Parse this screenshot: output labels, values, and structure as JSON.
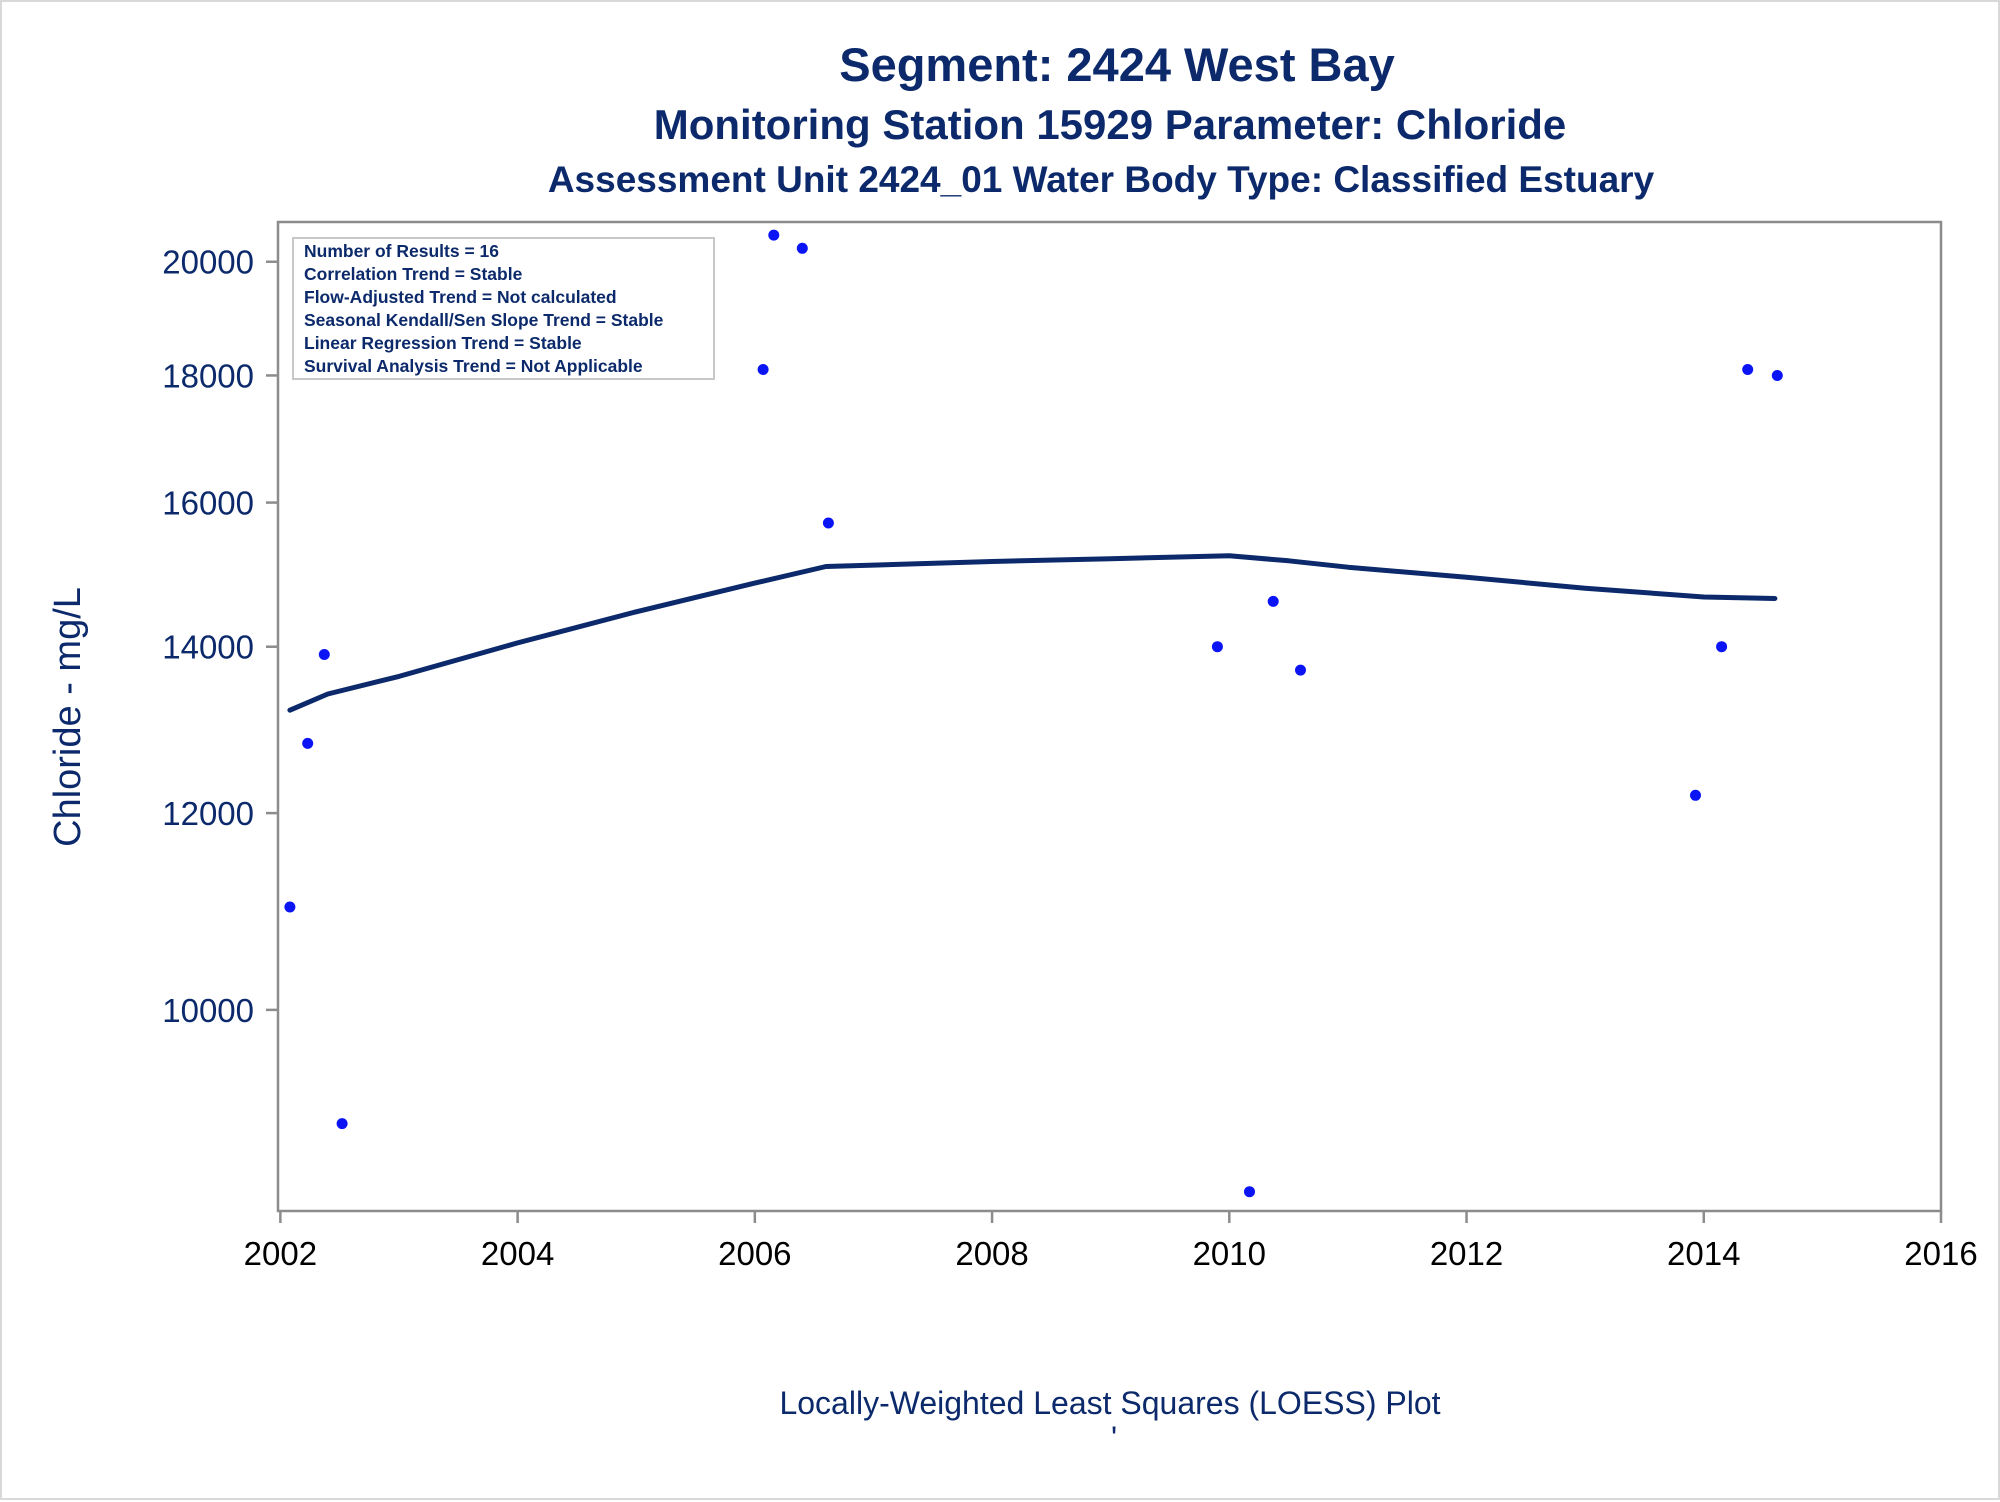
{
  "titles": [
    "Segment: 2424  West Bay",
    "Monitoring Station 15929 Parameter: Chloride",
    "Assessment Unit 2424_01   Water Body Type: Classified Estuary"
  ],
  "stats_box": [
    "Number of Results = 16",
    "Correlation Trend = Stable",
    "Flow-Adjusted Trend = Not calculated",
    "Seasonal Kendall/Sen Slope Trend = Stable",
    "Linear Regression Trend = Stable",
    "Survival Analysis Trend = Not Applicable"
  ],
  "footnote_mark": "'",
  "chart_data": {
    "type": "scatter",
    "xlabel": "Locally-Weighted Least Squares (LOESS) Plot",
    "ylabel": "Chloride - mg/L",
    "y_scale": "log",
    "xlim": [
      2001.98,
      2016.0
    ],
    "ylim": [
      8300,
      20750
    ],
    "x_ticks": [
      2002,
      2004,
      2006,
      2008,
      2010,
      2012,
      2014,
      2016
    ],
    "y_ticks": [
      10000,
      12000,
      14000,
      16000,
      18000,
      20000
    ],
    "grid": false,
    "colors": {
      "points": "#0a14f5",
      "line": "#0c2a6b",
      "text": "#0c2a6b"
    },
    "points": [
      {
        "x": 2002.08,
        "y": 11000
      },
      {
        "x": 2002.23,
        "y": 12800
      },
      {
        "x": 2002.37,
        "y": 13900
      },
      {
        "x": 2002.52,
        "y": 9000
      },
      {
        "x": 2006.07,
        "y": 18100
      },
      {
        "x": 2006.16,
        "y": 20500
      },
      {
        "x": 2006.4,
        "y": 20250
      },
      {
        "x": 2006.62,
        "y": 15700
      },
      {
        "x": 2009.9,
        "y": 14000
      },
      {
        "x": 2010.17,
        "y": 8450
      },
      {
        "x": 2010.37,
        "y": 14600
      },
      {
        "x": 2010.6,
        "y": 13700
      },
      {
        "x": 2013.93,
        "y": 12200
      },
      {
        "x": 2014.15,
        "y": 14000
      },
      {
        "x": 2014.37,
        "y": 18100
      },
      {
        "x": 2014.62,
        "y": 18000
      }
    ],
    "loess": [
      {
        "x": 2002.08,
        "y": 13200
      },
      {
        "x": 2002.4,
        "y": 13400
      },
      {
        "x": 2003.0,
        "y": 13620
      },
      {
        "x": 2004.0,
        "y": 14050
      },
      {
        "x": 2005.0,
        "y": 14460
      },
      {
        "x": 2006.0,
        "y": 14850
      },
      {
        "x": 2006.6,
        "y": 15080
      },
      {
        "x": 2007.0,
        "y": 15100
      },
      {
        "x": 2008.0,
        "y": 15150
      },
      {
        "x": 2009.0,
        "y": 15190
      },
      {
        "x": 2010.0,
        "y": 15230
      },
      {
        "x": 2010.5,
        "y": 15160
      },
      {
        "x": 2011.0,
        "y": 15070
      },
      {
        "x": 2012.0,
        "y": 14930
      },
      {
        "x": 2013.0,
        "y": 14780
      },
      {
        "x": 2014.0,
        "y": 14660
      },
      {
        "x": 2014.6,
        "y": 14640
      }
    ]
  }
}
